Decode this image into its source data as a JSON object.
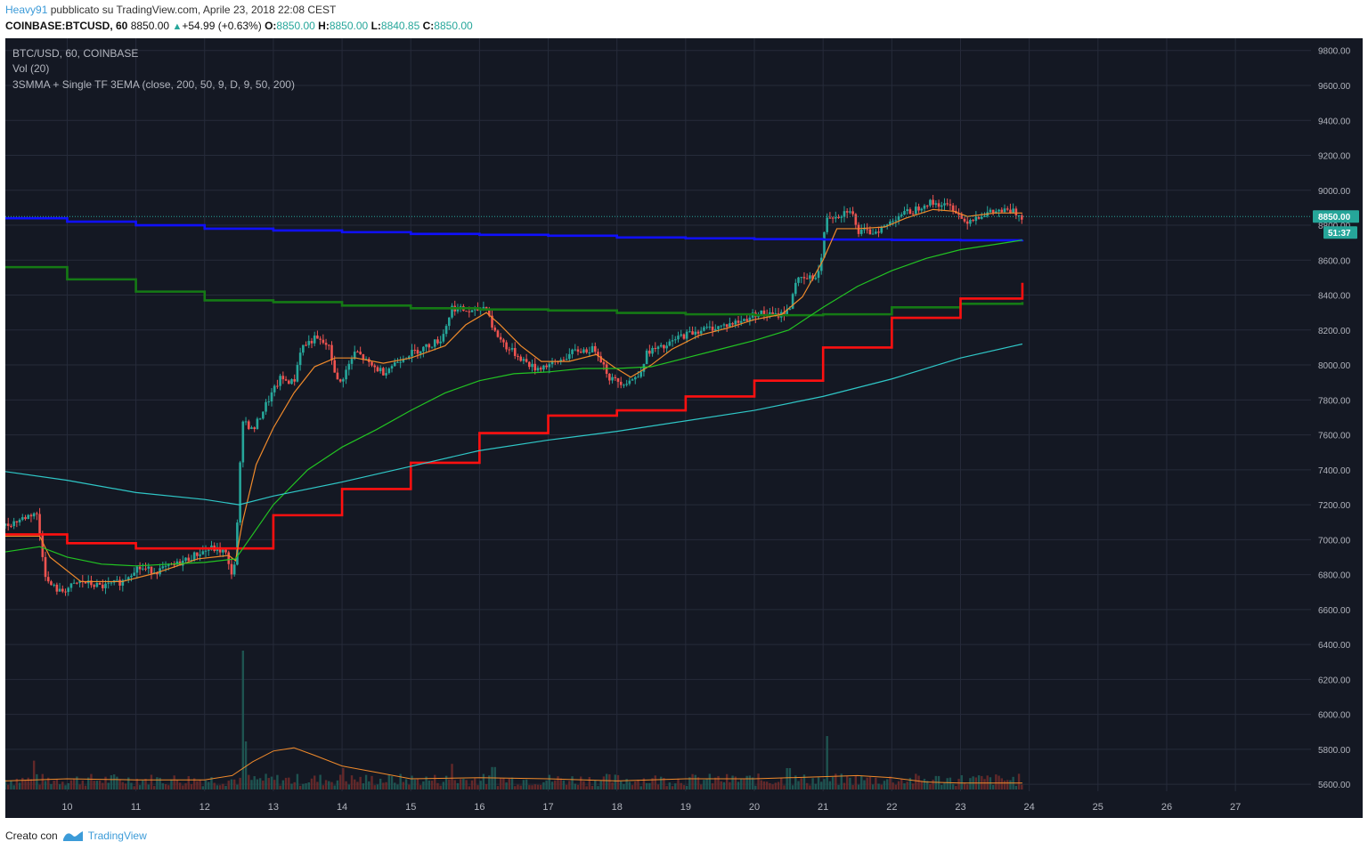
{
  "header": {
    "user": "Heavy91",
    "published": " pubblicato su TradingView.com, Aprile 23, 2018 22:08 CEST",
    "symbol": "COINBASE:BTCUSD, 60",
    "price": "8850.00",
    "change": "+54.99 (+0.63%)",
    "o_label": "O:",
    "o_value": "8850.00",
    "h_label": "H:",
    "h_value": "8850.00",
    "l_label": "L:",
    "l_value": "8840.85",
    "c_label": "C:",
    "c_value": "8850.00"
  },
  "legend": {
    "line1": "BTC/USD, 60, COINBASE",
    "line2": "Vol (20)",
    "line3": "3SMMA + Single TF 3EMA (close, 200, 50, 9, D, 9, 50, 200)"
  },
  "price_badge": "8850.00",
  "countdown_badge": "51:37",
  "footer": {
    "made_with": "Creato con",
    "brand": "TradingView"
  },
  "colors": {
    "background": "#141823",
    "grid": "#262b3a",
    "up": "#26a69a",
    "down": "#ef5350",
    "smma_blue": "#1010ff",
    "smma_green": "#157a15",
    "smma_red": "#ff1010",
    "ema_9": "#f08a2b",
    "ema_50": "#22c422",
    "ema_200": "#2fc7c7"
  },
  "chart_data": {
    "type": "candlestick",
    "timeframe": "60",
    "yticks": [
      "9800.00",
      "9600.00",
      "9400.00",
      "9200.00",
      "9000.00",
      "8800.00",
      "8600.00",
      "8400.00",
      "8200.00",
      "8000.00",
      "7800.00",
      "7600.00",
      "7400.00",
      "7200.00",
      "7000.00",
      "6800.00",
      "6600.00",
      "6400.00",
      "6200.00",
      "6000.00",
      "5800.00",
      "5600.00"
    ],
    "ylim": [
      5560,
      9870
    ],
    "xticks": [
      "10",
      "11",
      "12",
      "13",
      "14",
      "15",
      "16",
      "17",
      "18",
      "19",
      "20",
      "21",
      "22",
      "23",
      "24",
      "25",
      "26",
      "27"
    ],
    "xlim": [
      9.1,
      28.1
    ],
    "last_price": 8850,
    "candles_daily_path": [
      [
        9.1,
        7080
      ],
      [
        9.4,
        7130
      ],
      [
        9.55,
        7160
      ],
      [
        9.7,
        6760
      ],
      [
        9.9,
        6700
      ],
      [
        10.2,
        6760
      ],
      [
        10.5,
        6730
      ],
      [
        10.8,
        6760
      ],
      [
        11.0,
        6840
      ],
      [
        11.3,
        6820
      ],
      [
        11.6,
        6860
      ],
      [
        11.9,
        6920
      ],
      [
        12.1,
        6950
      ],
      [
        12.3,
        6930
      ],
      [
        12.38,
        6800
      ],
      [
        12.45,
        6880
      ],
      [
        12.55,
        7700
      ],
      [
        12.7,
        7620
      ],
      [
        12.9,
        7780
      ],
      [
        13.1,
        7920
      ],
      [
        13.3,
        7900
      ],
      [
        13.4,
        8100
      ],
      [
        13.6,
        8150
      ],
      [
        13.8,
        8110
      ],
      [
        13.95,
        7880
      ],
      [
        14.2,
        8080
      ],
      [
        14.4,
        8000
      ],
      [
        14.6,
        7960
      ],
      [
        14.9,
        8050
      ],
      [
        15.2,
        8100
      ],
      [
        15.45,
        8150
      ],
      [
        15.6,
        8330
      ],
      [
        15.9,
        8300
      ],
      [
        16.1,
        8340
      ],
      [
        16.2,
        8200
      ],
      [
        16.4,
        8100
      ],
      [
        16.6,
        8040
      ],
      [
        16.8,
        7980
      ],
      [
        17.1,
        8010
      ],
      [
        17.4,
        8080
      ],
      [
        17.7,
        8090
      ],
      [
        17.9,
        7920
      ],
      [
        18.1,
        7900
      ],
      [
        18.3,
        7930
      ],
      [
        18.45,
        8080
      ],
      [
        18.7,
        8100
      ],
      [
        18.9,
        8160
      ],
      [
        19.2,
        8200
      ],
      [
        19.5,
        8220
      ],
      [
        19.8,
        8250
      ],
      [
        20.05,
        8300
      ],
      [
        20.3,
        8280
      ],
      [
        20.5,
        8310
      ],
      [
        20.6,
        8480
      ],
      [
        20.85,
        8500
      ],
      [
        20.95,
        8540
      ],
      [
        21.05,
        8850
      ],
      [
        21.25,
        8860
      ],
      [
        21.4,
        8900
      ],
      [
        21.5,
        8760
      ],
      [
        21.7,
        8760
      ],
      [
        21.9,
        8790
      ],
      [
        22.1,
        8860
      ],
      [
        22.3,
        8880
      ],
      [
        22.5,
        8930
      ],
      [
        22.7,
        8920
      ],
      [
        22.9,
        8900
      ],
      [
        23.05,
        8820
      ],
      [
        23.3,
        8860
      ],
      [
        23.55,
        8880
      ],
      [
        23.75,
        8880
      ],
      [
        23.9,
        8850
      ]
    ],
    "series": [
      {
        "name": "",
        "role": "smma-200",
        "color": "#1010ff",
        "step": true,
        "points": [
          [
            9.1,
            8840
          ],
          [
            10.0,
            8820
          ],
          [
            11.0,
            8800
          ],
          [
            12.0,
            8780
          ],
          [
            13.0,
            8770
          ],
          [
            14.0,
            8760
          ],
          [
            15.0,
            8750
          ],
          [
            16.0,
            8745
          ],
          [
            17.0,
            8740
          ],
          [
            18.0,
            8730
          ],
          [
            19.0,
            8725
          ],
          [
            20.0,
            8720
          ],
          [
            21.0,
            8718
          ],
          [
            22.0,
            8716
          ],
          [
            23.0,
            8714
          ],
          [
            23.9,
            8716
          ]
        ]
      },
      {
        "name": "",
        "role": "smma-50",
        "color": "#157a15",
        "step": true,
        "points": [
          [
            9.1,
            8560
          ],
          [
            10.0,
            8490
          ],
          [
            11.0,
            8420
          ],
          [
            12.0,
            8370
          ],
          [
            13.0,
            8360
          ],
          [
            14.0,
            8340
          ],
          [
            15.0,
            8325
          ],
          [
            16.0,
            8318
          ],
          [
            17.0,
            8312
          ],
          [
            18.0,
            8298
          ],
          [
            19.0,
            8290
          ],
          [
            20.0,
            8285
          ],
          [
            21.0,
            8290
          ],
          [
            22.0,
            8330
          ],
          [
            23.0,
            8350
          ],
          [
            23.9,
            8360
          ]
        ]
      },
      {
        "name": "",
        "role": "smma-9",
        "color": "#ff1010",
        "step": true,
        "points": [
          [
            9.1,
            7030
          ],
          [
            10.0,
            6980
          ],
          [
            11.0,
            6950
          ],
          [
            12.0,
            6950
          ],
          [
            13.0,
            7140
          ],
          [
            14.0,
            7290
          ],
          [
            15.0,
            7440
          ],
          [
            16.0,
            7610
          ],
          [
            17.0,
            7710
          ],
          [
            18.0,
            7740
          ],
          [
            19.0,
            7820
          ],
          [
            20.0,
            7910
          ],
          [
            21.0,
            8100
          ],
          [
            22.0,
            8270
          ],
          [
            23.0,
            8380
          ],
          [
            23.85,
            8380
          ],
          [
            23.9,
            8470
          ]
        ]
      },
      {
        "name": "",
        "role": "ema-9",
        "color": "#f08a2b",
        "step": false,
        "points": [
          [
            9.1,
            7020
          ],
          [
            9.6,
            7020
          ],
          [
            9.75,
            6900
          ],
          [
            10.2,
            6760
          ],
          [
            10.8,
            6760
          ],
          [
            11.3,
            6810
          ],
          [
            11.9,
            6890
          ],
          [
            12.35,
            6910
          ],
          [
            12.45,
            6880
          ],
          [
            12.55,
            7100
          ],
          [
            12.75,
            7430
          ],
          [
            13.0,
            7640
          ],
          [
            13.3,
            7840
          ],
          [
            13.6,
            7990
          ],
          [
            13.9,
            8040
          ],
          [
            14.2,
            8040
          ],
          [
            14.6,
            8010
          ],
          [
            15.0,
            8040
          ],
          [
            15.5,
            8110
          ],
          [
            15.8,
            8230
          ],
          [
            16.1,
            8300
          ],
          [
            16.3,
            8230
          ],
          [
            16.6,
            8110
          ],
          [
            16.9,
            8020
          ],
          [
            17.3,
            8020
          ],
          [
            17.7,
            8060
          ],
          [
            17.95,
            7990
          ],
          [
            18.2,
            7930
          ],
          [
            18.5,
            8000
          ],
          [
            18.8,
            8090
          ],
          [
            19.2,
            8170
          ],
          [
            19.6,
            8210
          ],
          [
            20.0,
            8260
          ],
          [
            20.4,
            8290
          ],
          [
            20.7,
            8390
          ],
          [
            21.0,
            8600
          ],
          [
            21.2,
            8780
          ],
          [
            21.5,
            8780
          ],
          [
            21.9,
            8790
          ],
          [
            22.2,
            8840
          ],
          [
            22.6,
            8890
          ],
          [
            22.9,
            8880
          ],
          [
            23.1,
            8850
          ],
          [
            23.5,
            8870
          ],
          [
            23.9,
            8870
          ]
        ]
      },
      {
        "name": "",
        "role": "ema-50",
        "color": "#22c422",
        "step": false,
        "points": [
          [
            9.1,
            6930
          ],
          [
            9.6,
            6960
          ],
          [
            10.0,
            6900
          ],
          [
            10.5,
            6860
          ],
          [
            11.0,
            6850
          ],
          [
            11.5,
            6860
          ],
          [
            12.0,
            6870
          ],
          [
            12.45,
            6890
          ],
          [
            12.7,
            7030
          ],
          [
            13.0,
            7200
          ],
          [
            13.5,
            7400
          ],
          [
            14.0,
            7530
          ],
          [
            14.5,
            7630
          ],
          [
            15.0,
            7740
          ],
          [
            15.5,
            7840
          ],
          [
            16.0,
            7910
          ],
          [
            16.5,
            7950
          ],
          [
            17.0,
            7960
          ],
          [
            17.5,
            7980
          ],
          [
            18.0,
            7980
          ],
          [
            18.5,
            7990
          ],
          [
            19.0,
            8040
          ],
          [
            19.5,
            8090
          ],
          [
            20.0,
            8140
          ],
          [
            20.5,
            8200
          ],
          [
            21.0,
            8330
          ],
          [
            21.5,
            8450
          ],
          [
            22.0,
            8540
          ],
          [
            22.5,
            8610
          ],
          [
            23.0,
            8660
          ],
          [
            23.5,
            8690
          ],
          [
            23.9,
            8715
          ]
        ]
      },
      {
        "name": "",
        "role": "ema-200",
        "color": "#2fc7c7",
        "step": false,
        "points": [
          [
            9.1,
            7390
          ],
          [
            10.0,
            7340
          ],
          [
            11.0,
            7270
          ],
          [
            12.0,
            7230
          ],
          [
            12.5,
            7200
          ],
          [
            13.0,
            7250
          ],
          [
            14.0,
            7330
          ],
          [
            15.0,
            7420
          ],
          [
            16.0,
            7510
          ],
          [
            17.0,
            7570
          ],
          [
            18.0,
            7620
          ],
          [
            19.0,
            7680
          ],
          [
            20.0,
            7740
          ],
          [
            21.0,
            7820
          ],
          [
            22.0,
            7920
          ],
          [
            23.0,
            8040
          ],
          [
            23.9,
            8120
          ]
        ]
      }
    ],
    "volume": {
      "name": "Vol (20)",
      "ma_color": "#f08a2b",
      "ma_points": [
        [
          9.1,
          0.8
        ],
        [
          10.0,
          1.0
        ],
        [
          11.0,
          0.9
        ],
        [
          12.0,
          0.9
        ],
        [
          12.4,
          1.3
        ],
        [
          12.7,
          2.6
        ],
        [
          13.0,
          3.6
        ],
        [
          13.3,
          3.9
        ],
        [
          13.6,
          3.2
        ],
        [
          14.0,
          2.2
        ],
        [
          14.5,
          1.6
        ],
        [
          15.0,
          1.0
        ],
        [
          16.0,
          1.1
        ],
        [
          17.0,
          1.0
        ],
        [
          18.0,
          0.8
        ],
        [
          19.0,
          1.0
        ],
        [
          20.0,
          1.0
        ],
        [
          21.0,
          1.2
        ],
        [
          21.5,
          1.3
        ],
        [
          22.0,
          1.1
        ],
        [
          22.5,
          0.7
        ],
        [
          23.0,
          0.6
        ],
        [
          23.9,
          0.6
        ]
      ],
      "spikes": [
        [
          12.55,
          13.0
        ],
        [
          21.05,
          5.0
        ],
        [
          12.6,
          4.5
        ],
        [
          9.5,
          2.7
        ],
        [
          15.6,
          2.4
        ],
        [
          16.2,
          2.1
        ],
        [
          20.5,
          2.0
        ],
        [
          14.0,
          2.0
        ]
      ]
    },
    "legend": "top-left",
    "grid": true
  }
}
